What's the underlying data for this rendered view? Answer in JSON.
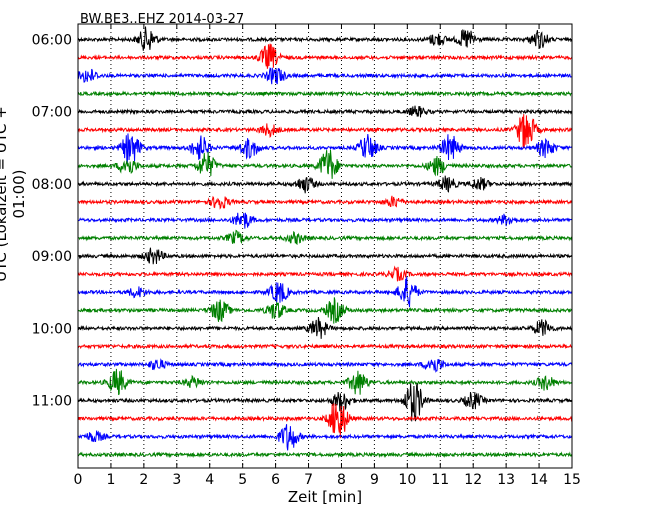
{
  "chart_data": {
    "type": "line",
    "title": "BW.BE3..EHZ 2014-03-27",
    "xlabel": "Zeit  [min]",
    "ylabel": "UTC (Lokalzeit = UTC + 01:00)",
    "xlim": [
      0,
      15
    ],
    "x_ticks": [
      "0",
      "1",
      "2",
      "3",
      "4",
      "5",
      "6",
      "7",
      "8",
      "9",
      "10",
      "11",
      "12",
      "13",
      "14",
      "15"
    ],
    "y_tick_labels": [
      "06:00",
      "07:00",
      "08:00",
      "09:00",
      "10:00",
      "11:00"
    ],
    "trace_start_time": "06:00",
    "trace_interval_minutes": 15,
    "trace_count": 24,
    "trace_colors": [
      "#000000",
      "#ff0000",
      "#0000ff",
      "#008000"
    ],
    "vertical_grid": "dotted",
    "bursts": [
      {
        "trace": 0,
        "minute": 2.1,
        "amplitude": 12
      },
      {
        "trace": 0,
        "minute": 11.8,
        "amplitude": 10
      },
      {
        "trace": 0,
        "minute": 14.0,
        "amplitude": 9
      },
      {
        "trace": 0,
        "minute": 10.9,
        "amplitude": 6
      },
      {
        "trace": 1,
        "minute": 5.8,
        "amplitude": 13
      },
      {
        "trace": 2,
        "minute": 6.0,
        "amplitude": 9
      },
      {
        "trace": 2,
        "minute": 0.3,
        "amplitude": 7
      },
      {
        "trace": 4,
        "minute": 10.3,
        "amplitude": 5
      },
      {
        "trace": 5,
        "minute": 13.6,
        "amplitude": 20
      },
      {
        "trace": 5,
        "minute": 5.8,
        "amplitude": 6
      },
      {
        "trace": 6,
        "minute": 1.6,
        "amplitude": 16
      },
      {
        "trace": 6,
        "minute": 3.7,
        "amplitude": 12
      },
      {
        "trace": 6,
        "minute": 5.2,
        "amplitude": 10
      },
      {
        "trace": 6,
        "minute": 8.8,
        "amplitude": 13
      },
      {
        "trace": 6,
        "minute": 11.3,
        "amplitude": 13
      },
      {
        "trace": 6,
        "minute": 14.2,
        "amplitude": 9
      },
      {
        "trace": 7,
        "minute": 7.6,
        "amplitude": 17
      },
      {
        "trace": 7,
        "minute": 3.9,
        "amplitude": 13
      },
      {
        "trace": 7,
        "minute": 1.5,
        "amplitude": 9
      },
      {
        "trace": 7,
        "minute": 10.9,
        "amplitude": 9
      },
      {
        "trace": 8,
        "minute": 6.9,
        "amplitude": 8
      },
      {
        "trace": 8,
        "minute": 11.2,
        "amplitude": 7
      },
      {
        "trace": 8,
        "minute": 12.2,
        "amplitude": 6
      },
      {
        "trace": 9,
        "minute": 4.3,
        "amplitude": 7
      },
      {
        "trace": 9,
        "minute": 9.6,
        "amplitude": 5
      },
      {
        "trace": 10,
        "minute": 5.0,
        "amplitude": 9
      },
      {
        "trace": 10,
        "minute": 13.0,
        "amplitude": 5
      },
      {
        "trace": 11,
        "minute": 4.8,
        "amplitude": 6
      },
      {
        "trace": 11,
        "minute": 6.6,
        "amplitude": 5
      },
      {
        "trace": 12,
        "minute": 2.3,
        "amplitude": 8
      },
      {
        "trace": 13,
        "minute": 9.7,
        "amplitude": 6
      },
      {
        "trace": 14,
        "minute": 6.1,
        "amplitude": 11
      },
      {
        "trace": 14,
        "minute": 10.0,
        "amplitude": 15
      },
      {
        "trace": 14,
        "minute": 1.8,
        "amplitude": 5
      },
      {
        "trace": 15,
        "minute": 4.3,
        "amplitude": 11
      },
      {
        "trace": 15,
        "minute": 7.8,
        "amplitude": 12
      },
      {
        "trace": 15,
        "minute": 6.0,
        "amplitude": 9
      },
      {
        "trace": 16,
        "minute": 7.3,
        "amplitude": 10
      },
      {
        "trace": 16,
        "minute": 14.1,
        "amplitude": 8
      },
      {
        "trace": 18,
        "minute": 10.8,
        "amplitude": 8
      },
      {
        "trace": 18,
        "minute": 2.4,
        "amplitude": 5
      },
      {
        "trace": 19,
        "minute": 1.2,
        "amplitude": 13
      },
      {
        "trace": 19,
        "minute": 8.5,
        "amplitude": 12
      },
      {
        "trace": 19,
        "minute": 14.2,
        "amplitude": 7
      },
      {
        "trace": 19,
        "minute": 3.5,
        "amplitude": 5
      },
      {
        "trace": 20,
        "minute": 10.2,
        "amplitude": 21
      },
      {
        "trace": 20,
        "minute": 8.0,
        "amplitude": 10
      },
      {
        "trace": 20,
        "minute": 12.0,
        "amplitude": 8
      },
      {
        "trace": 21,
        "minute": 7.9,
        "amplitude": 22
      },
      {
        "trace": 22,
        "minute": 6.4,
        "amplitude": 14
      },
      {
        "trace": 22,
        "minute": 0.5,
        "amplitude": 5
      }
    ]
  }
}
